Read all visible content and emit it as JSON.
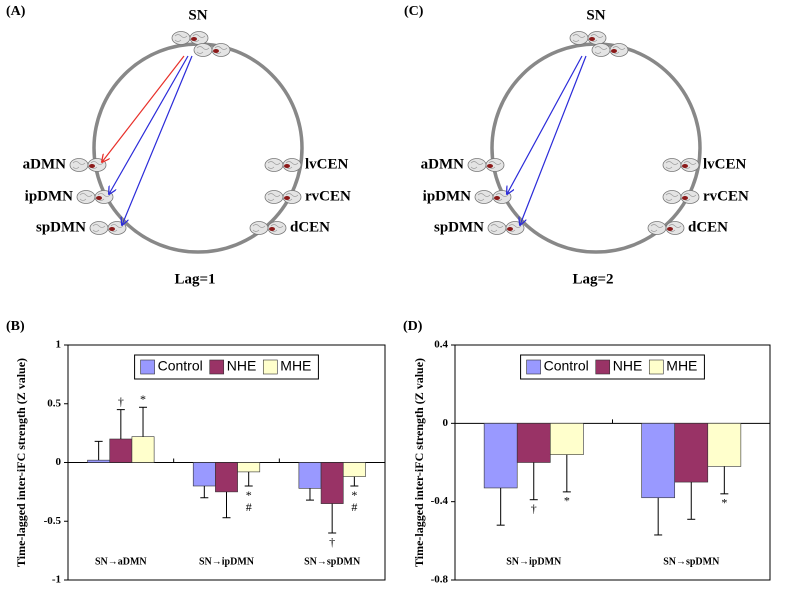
{
  "panels": [
    {
      "label": "(A)",
      "center": "SN",
      "left": [
        "aDMN",
        "ipDMN",
        "spDMN"
      ],
      "right": [
        "lvCEN",
        "rvCEN",
        "dCEN"
      ],
      "caption": "Lag=1",
      "edges": [
        {
          "to": "aDMN",
          "color": "#e8302a"
        },
        {
          "to": "ipDMN",
          "color": "#2b2bd9"
        },
        {
          "to": "spDMN",
          "color": "#2b2bd9"
        }
      ]
    },
    {
      "label": "(C)",
      "center": "SN",
      "left": [
        "aDMN",
        "ipDMN",
        "spDMN"
      ],
      "right": [
        "lvCEN",
        "rvCEN",
        "dCEN"
      ],
      "caption": "Lag=2",
      "edges": [
        {
          "to": "ipDMN",
          "color": "#2b2bd9"
        },
        {
          "to": "spDMN",
          "color": "#2b2bd9"
        }
      ]
    }
  ],
  "chart_data": [
    {
      "type": "bar",
      "panel_label": "(B)",
      "ylabel": "Time-lagged inter-iFC strength (Z value)",
      "categories": [
        "SN→aDMN",
        "SN→ipDMN",
        "SN→spDMN"
      ],
      "series": [
        {
          "name": "Control",
          "color": "#9999ff",
          "values": [
            0.02,
            -0.2,
            -0.22
          ],
          "errors": [
            0.16,
            0.1,
            0.1
          ],
          "annotations": [
            [],
            [],
            []
          ]
        },
        {
          "name": "NHE",
          "color": "#993366",
          "values": [
            0.2,
            -0.25,
            -0.35
          ],
          "errors": [
            0.25,
            0.22,
            0.25
          ],
          "annotations": [
            [
              "†"
            ],
            [],
            [
              "†"
            ]
          ]
        },
        {
          "name": "MHE",
          "color": "#ffffcc",
          "values": [
            0.22,
            -0.08,
            -0.12
          ],
          "errors": [
            0.25,
            0.12,
            0.08
          ],
          "annotations": [
            [
              "*"
            ],
            [
              "*",
              "#"
            ],
            [
              "*",
              "#"
            ]
          ]
        }
      ],
      "ylim": [
        -1,
        1
      ],
      "yticks": [
        -1,
        -0.5,
        0,
        0.5,
        1
      ],
      "legend": "top"
    },
    {
      "type": "bar",
      "panel_label": "(D)",
      "ylabel": "Time-lagged inter-iFC strength (Z value)",
      "categories": [
        "SN→ipDMN",
        "SN→spDMN"
      ],
      "series": [
        {
          "name": "Control",
          "color": "#9999ff",
          "values": [
            -0.33,
            -0.38
          ],
          "errors": [
            0.19,
            0.19
          ],
          "annotations": [
            [],
            []
          ]
        },
        {
          "name": "NHE",
          "color": "#993366",
          "values": [
            -0.2,
            -0.3
          ],
          "errors": [
            0.19,
            0.19
          ],
          "annotations": [
            [
              "†"
            ],
            []
          ]
        },
        {
          "name": "MHE",
          "color": "#ffffcc",
          "values": [
            -0.16,
            -0.22
          ],
          "errors": [
            0.19,
            0.14
          ],
          "annotations": [
            [
              "*"
            ],
            [
              "*"
            ]
          ]
        }
      ],
      "ylim": [
        -0.8,
        0.4
      ],
      "yticks": [
        -0.8,
        -0.4,
        0,
        0.4
      ],
      "legend": "top"
    }
  ]
}
